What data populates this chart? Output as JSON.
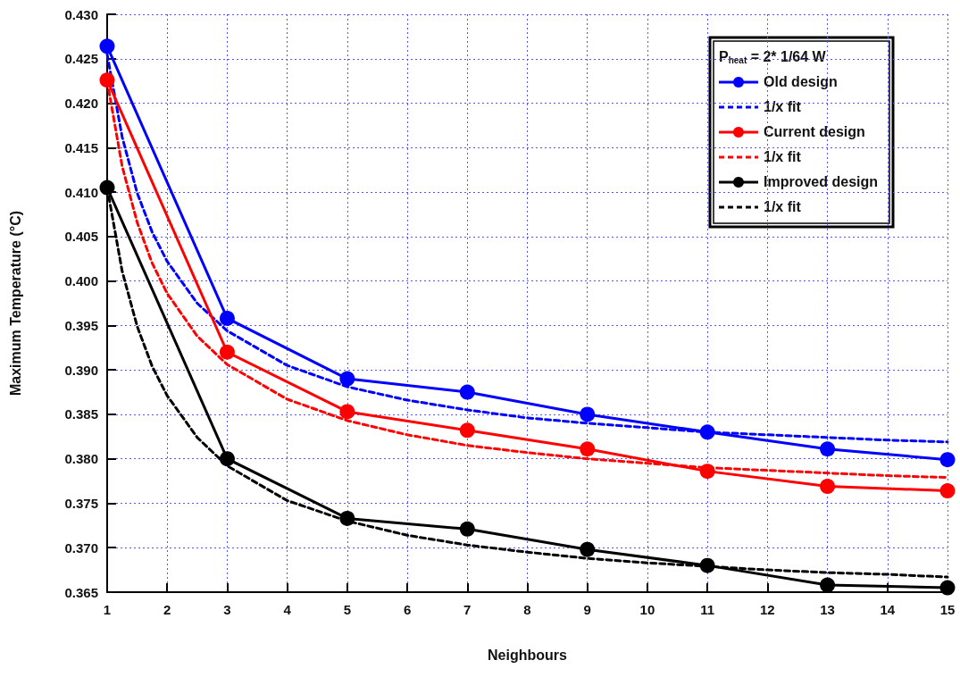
{
  "chart_data": {
    "type": "line",
    "xlabel": "Neighbours",
    "ylabel": "Maximum Temperature (°C)",
    "legend_title": "P$_{heat}$ = 2* 1/64 W",
    "xlim": [
      1,
      15
    ],
    "xticks": [
      1,
      2,
      3,
      4,
      5,
      6,
      7,
      8,
      9,
      10,
      11,
      12,
      13,
      14,
      15
    ],
    "ylim": [
      0.365,
      0.43
    ],
    "yticks": [
      0.365,
      {
        "value": 0.37,
        "label": "0.370"
      },
      0.375,
      {
        "value": 0.38,
        "label": "0.380"
      },
      0.385,
      {
        "value": 0.39,
        "label": "0.390"
      },
      0.395,
      {
        "value": 0.4,
        "label": "0.400"
      },
      0.405,
      {
        "value": 0.41,
        "label": "0.410"
      },
      0.415,
      {
        "value": 0.42,
        "label": "0.420"
      },
      0.425,
      {
        "value": 0.43,
        "label": "0.430"
      }
    ],
    "grid": true,
    "legend": "top right",
    "series": [
      {
        "name": "Old design",
        "color": "#0000ff",
        "marker": "circle",
        "line_style": "solid",
        "x": [
          1,
          3,
          5,
          7,
          9,
          11,
          13,
          15
        ],
        "values": [
          0.4264,
          0.3958,
          0.389,
          0.3875,
          0.385,
          0.383,
          0.3811,
          0.3799
        ]
      },
      {
        "name": "1/x fit",
        "color": "#0000ff",
        "marker": "none",
        "line_style": "dashed",
        "x": [
          1,
          1.25,
          1.5,
          1.75,
          2,
          2.5,
          3,
          4,
          5,
          6,
          7,
          8,
          9,
          10,
          11,
          12,
          13,
          14,
          15
        ],
        "values": [
          0.4255,
          0.4162,
          0.4099,
          0.4055,
          0.4022,
          0.3975,
          0.3944,
          0.3905,
          0.3881,
          0.3866,
          0.3855,
          0.3846,
          0.384,
          0.3835,
          0.383,
          0.3827,
          0.3824,
          0.3821,
          0.3819
        ]
      },
      {
        "name": "Current design",
        "color": "#ff0000",
        "marker": "circle",
        "line_style": "solid",
        "x": [
          1,
          3,
          5,
          7,
          9,
          11,
          13,
          15
        ],
        "values": [
          0.4226,
          0.392,
          0.3853,
          0.3832,
          0.3811,
          0.3786,
          0.3769,
          0.3764
        ]
      },
      {
        "name": "1/x fit",
        "color": "#ff0000",
        "marker": "none",
        "line_style": "dashed",
        "x": [
          1,
          1.25,
          1.5,
          1.75,
          2,
          2.5,
          3,
          4,
          5,
          6,
          7,
          8,
          9,
          10,
          11,
          12,
          13,
          14,
          15
        ],
        "values": [
          0.4225,
          0.4129,
          0.4066,
          0.402,
          0.3986,
          0.3938,
          0.3906,
          0.3867,
          0.3843,
          0.3827,
          0.3815,
          0.3807,
          0.38,
          0.3795,
          0.379,
          0.3787,
          0.3784,
          0.3781,
          0.3779
        ]
      },
      {
        "name": "Improved design",
        "color": "#000000",
        "marker": "circle",
        "line_style": "solid",
        "x": [
          1,
          3,
          5,
          7,
          9,
          11,
          13,
          15
        ],
        "values": [
          0.4105,
          0.38,
          0.3733,
          0.3721,
          0.3698,
          0.368,
          0.3658,
          0.3655
        ]
      },
      {
        "name": "1/x fit",
        "color": "#000000",
        "marker": "none",
        "line_style": "dashed",
        "x": [
          1,
          1.25,
          1.5,
          1.75,
          2,
          2.5,
          3,
          4,
          5,
          6,
          7,
          8,
          9,
          10,
          11,
          12,
          13,
          14,
          15
        ],
        "values": [
          0.4105,
          0.4011,
          0.3949,
          0.3904,
          0.3871,
          0.3824,
          0.3792,
          0.3753,
          0.373,
          0.3714,
          0.3703,
          0.3695,
          0.3688,
          0.3683,
          0.3679,
          0.3675,
          0.3672,
          0.367,
          0.3667
        ]
      }
    ]
  }
}
